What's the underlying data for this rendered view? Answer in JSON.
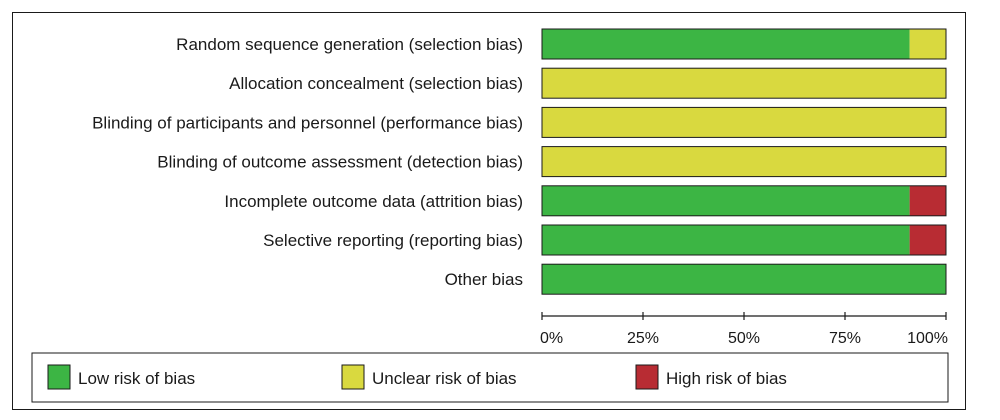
{
  "chart_data": {
    "type": "bar",
    "orientation": "horizontal",
    "stacked": true,
    "categories": [
      "Random sequence generation (selection bias)",
      "Allocation concealment (selection bias)",
      "Blinding of participants and personnel (performance bias)",
      "Blinding of outcome assessment (detection bias)",
      "Incomplete outcome data (attrition bias)",
      "Selective reporting (reporting bias)",
      "Other bias"
    ],
    "series": [
      {
        "name": "Low risk of bias",
        "color": "#3cb544",
        "values": [
          91,
          0,
          0,
          0,
          91,
          91,
          100
        ]
      },
      {
        "name": "Unclear risk of bias",
        "color": "#d9d93f",
        "values": [
          9,
          100,
          100,
          100,
          0,
          0,
          0
        ]
      },
      {
        "name": "High risk of bias",
        "color": "#b82c33",
        "values": [
          0,
          0,
          0,
          0,
          9,
          9,
          0
        ]
      }
    ],
    "xlim": [
      0,
      100
    ],
    "xticks": [
      0,
      25,
      50,
      75,
      100
    ],
    "xtick_labels": [
      "0%",
      "25%",
      "50%",
      "75%",
      "100%"
    ],
    "grid": false,
    "legend_position": "bottom"
  }
}
